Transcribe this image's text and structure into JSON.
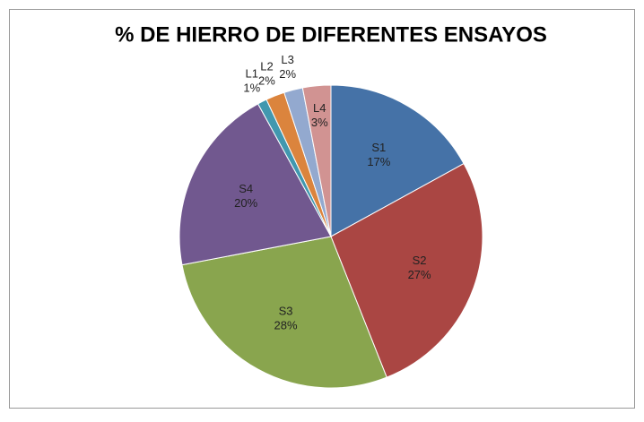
{
  "chart_data": {
    "type": "pie",
    "title": "% DE HIERRO DE DIFERENTES ENSAYOS",
    "categories": [
      "S1",
      "S2",
      "S3",
      "S4",
      "L1",
      "L2",
      "L3",
      "L4"
    ],
    "values": [
      17,
      27,
      28,
      20,
      1,
      2,
      2,
      3
    ],
    "value_labels": [
      "17%",
      "27%",
      "28%",
      "20%",
      "1%",
      "2%",
      "2%",
      "3%"
    ],
    "colors": [
      "#4572a7",
      "#aa4643",
      "#89a54e",
      "#71588f",
      "#4198af",
      "#db843d",
      "#93a9cf",
      "#d19392"
    ]
  }
}
